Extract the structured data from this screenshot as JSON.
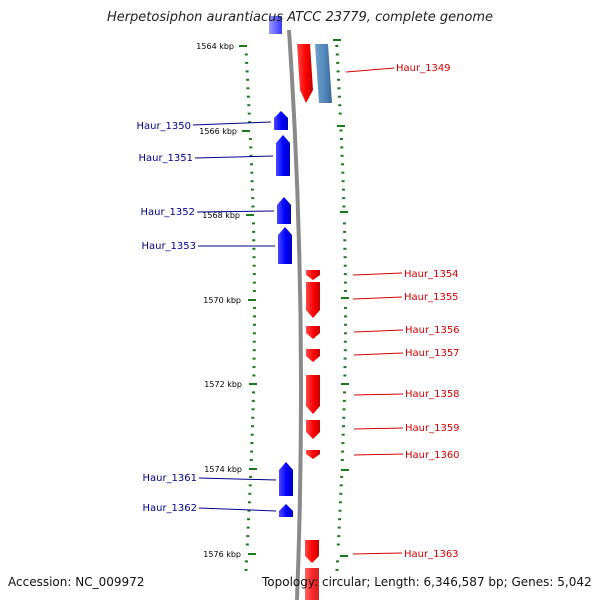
{
  "title": "Herpetosiphon aurantiacus ATCC 23779, complete genome",
  "accession_text": "Accession: NC_009972",
  "topology_text": "Topology: circular; Length: 6,346,587 bp; Genes: 5,042",
  "colors": {
    "backbone": "#8a8a8a",
    "tick": "#1a7a1a",
    "forward_gene": "#ff0000",
    "reverse_gene": "#0000ff",
    "rna_gene": "#4f86b8",
    "forward_label": "#d40000",
    "reverse_label": "#00008b"
  },
  "scale_labels": [
    "1564 kbp",
    "1566 kbp",
    "1568 kbp",
    "1570 kbp",
    "1572 kbp",
    "1574 kbp",
    "1576 kbp"
  ],
  "genes": [
    {
      "label": "Haur_1349",
      "strand": "+"
    },
    {
      "label": "Haur_1350",
      "strand": "-"
    },
    {
      "label": "Haur_1351",
      "strand": "-"
    },
    {
      "label": "Haur_1352",
      "strand": "-"
    },
    {
      "label": "Haur_1353",
      "strand": "-"
    },
    {
      "label": "Haur_1354",
      "strand": "+"
    },
    {
      "label": "Haur_1355",
      "strand": "+"
    },
    {
      "label": "Haur_1356",
      "strand": "+"
    },
    {
      "label": "Haur_1357",
      "strand": "+"
    },
    {
      "label": "Haur_1358",
      "strand": "+"
    },
    {
      "label": "Haur_1359",
      "strand": "+"
    },
    {
      "label": "Haur_1360",
      "strand": "+"
    },
    {
      "label": "Haur_1361",
      "strand": "-"
    },
    {
      "label": "Haur_1362",
      "strand": "-"
    },
    {
      "label": "Haur_1363",
      "strand": "+"
    }
  ]
}
